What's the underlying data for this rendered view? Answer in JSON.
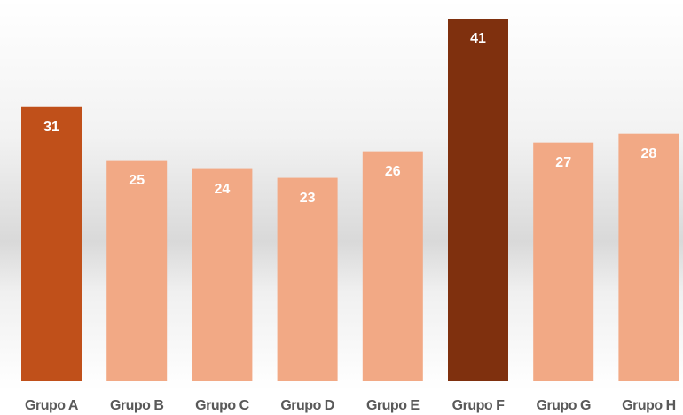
{
  "chart_data": {
    "type": "bar",
    "categories": [
      "Grupo A",
      "Grupo B",
      "Grupo C",
      "Grupo D",
      "Grupo E",
      "Grupo F",
      "Grupo G",
      "Grupo H"
    ],
    "values": [
      31,
      25,
      24,
      23,
      26,
      41,
      27,
      28
    ],
    "colors": [
      "#c0501a",
      "#f2a985",
      "#f2a985",
      "#f2a985",
      "#f2a985",
      "#7f300e",
      "#f2a985",
      "#f2a985"
    ]
  }
}
